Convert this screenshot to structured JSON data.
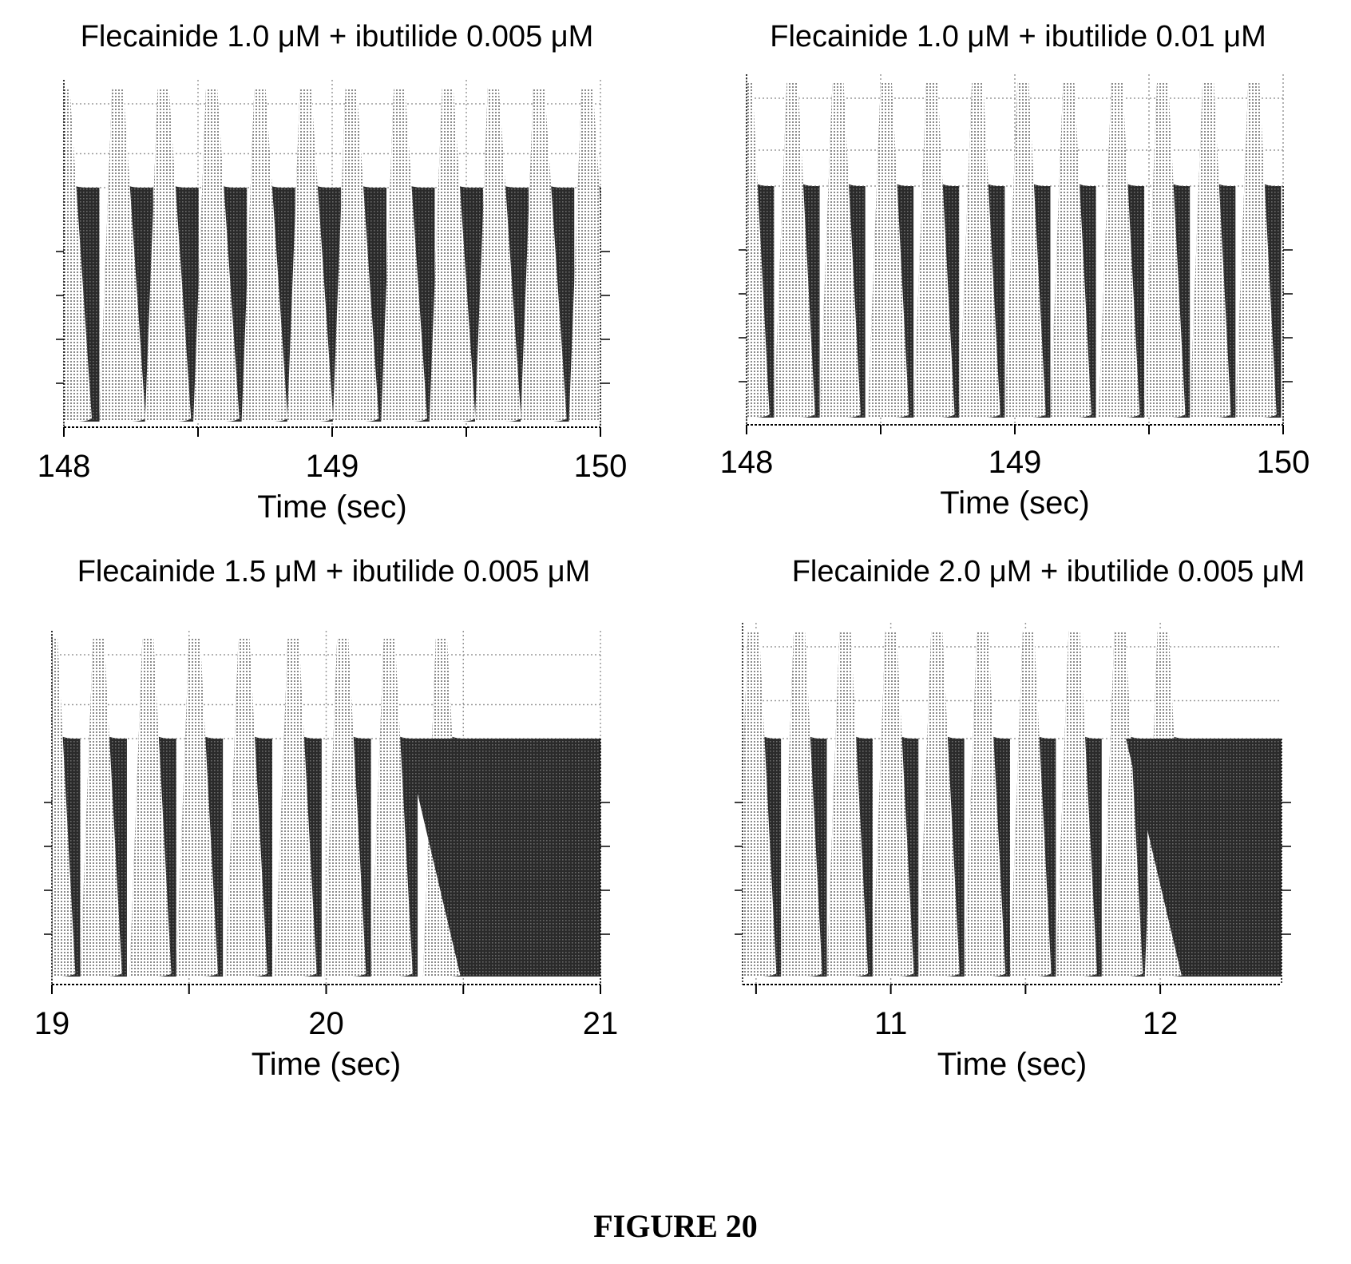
{
  "figure": {
    "caption": "FIGURE 20"
  },
  "chart_data": [
    {
      "type": "line",
      "title": "Flecainide 1.0 μM + ibutilide 0.005 μM",
      "xlabel": "Time (sec)",
      "ylabel": "",
      "xlim": [
        148,
        150
      ],
      "ylim": [
        0,
        1
      ],
      "xticks": [
        148,
        148.5,
        149,
        149.5,
        150
      ],
      "xtick_labels": [
        "148",
        "",
        "149",
        "",
        "150"
      ],
      "grid": true,
      "series": [
        {
          "beats": [
            147.98,
            148.18,
            148.35,
            148.53,
            148.71,
            148.88,
            149.05,
            149.23,
            149.41,
            149.58,
            149.75,
            149.93
          ],
          "front_end": null
        }
      ]
    },
    {
      "type": "line",
      "title": "Flecainide 1.0 μM + ibutilide 0.01 μM",
      "xlabel": "Time (sec)",
      "ylabel": "",
      "xlim": [
        148,
        150
      ],
      "ylim": [
        0,
        1
      ],
      "xticks": [
        148,
        148.5,
        149,
        149.5,
        150
      ],
      "xtick_labels": [
        "148",
        "",
        "149",
        "",
        "150"
      ],
      "grid": true,
      "series": [
        {
          "beats": [
            147.98,
            148.15,
            148.32,
            148.5,
            148.67,
            148.84,
            149.01,
            149.18,
            149.36,
            149.53,
            149.7,
            149.87
          ],
          "front_end": null
        }
      ]
    },
    {
      "type": "line",
      "title": "Flecainide 1.5 μM + ibutilide 0.005 μM",
      "xlabel": "Time (sec)",
      "ylabel": "",
      "xlim": [
        19,
        21
      ],
      "ylim": [
        0,
        1
      ],
      "xticks": [
        19,
        19.5,
        20,
        20.5,
        21
      ],
      "xtick_labels": [
        "19",
        "",
        "20",
        "",
        "21"
      ],
      "grid": true,
      "series": [
        {
          "beats": [
            18.98,
            19.15,
            19.33,
            19.5,
            19.68,
            19.86,
            20.04,
            20.21,
            20.4
          ],
          "front_end": 20.49
        }
      ]
    },
    {
      "type": "line",
      "title": "Flecainide 2.0 μM + ibutilide 0.005 μM",
      "xlabel": "Time (sec)",
      "ylabel": "",
      "xlim": [
        10.45,
        12.45
      ],
      "ylim": [
        0,
        1
      ],
      "xticks": [
        10.5,
        11,
        11.5,
        12
      ],
      "xtick_labels": [
        "",
        "11",
        "",
        "12"
      ],
      "grid": true,
      "series": [
        {
          "beats": [
            10.47,
            10.64,
            10.81,
            10.98,
            11.15,
            11.32,
            11.49,
            11.66,
            11.83,
            11.99
          ],
          "front_end": 12.08
        }
      ]
    }
  ]
}
